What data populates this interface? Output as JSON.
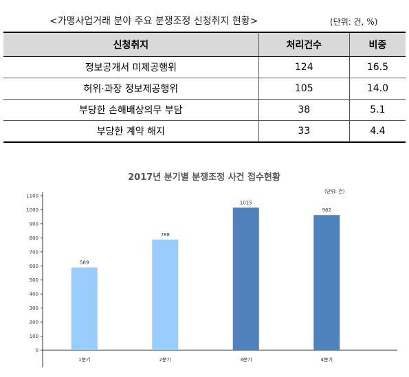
{
  "table": {
    "title": "<가맹사업거래 분야 주요 분쟁조정 신청취지 현황>",
    "unit": "(단위: 건, %)",
    "header": [
      "신청취지",
      "처리건수",
      "비중"
    ],
    "rows": [
      [
        "정보공개서 미제공행위",
        "124",
        "16.5"
      ],
      [
        "허위·과장 정보제공행위",
        "105",
        "14.0"
      ],
      [
        "부당한 손해배상의무 부담",
        "38",
        "5.1"
      ],
      [
        "부당한 계약 해지",
        "33",
        "4.4"
      ]
    ]
  },
  "chart_data": {
    "type": "bar",
    "title": "2017년 분기별 분쟁조정 사건 접수현황",
    "unit": "(단위: 건)",
    "categories": [
      "1분기",
      "2분기",
      "3분기",
      "4분기"
    ],
    "values": [
      589,
      788,
      1015,
      962
    ],
    "colors": [
      "#99ccff",
      "#99ccff",
      "#4f81bd",
      "#4f81bd"
    ],
    "ylim": [
      0,
      1100
    ],
    "yticks": [
      0,
      100,
      200,
      300,
      400,
      500,
      600,
      700,
      800,
      900,
      1000,
      1100
    ]
  }
}
